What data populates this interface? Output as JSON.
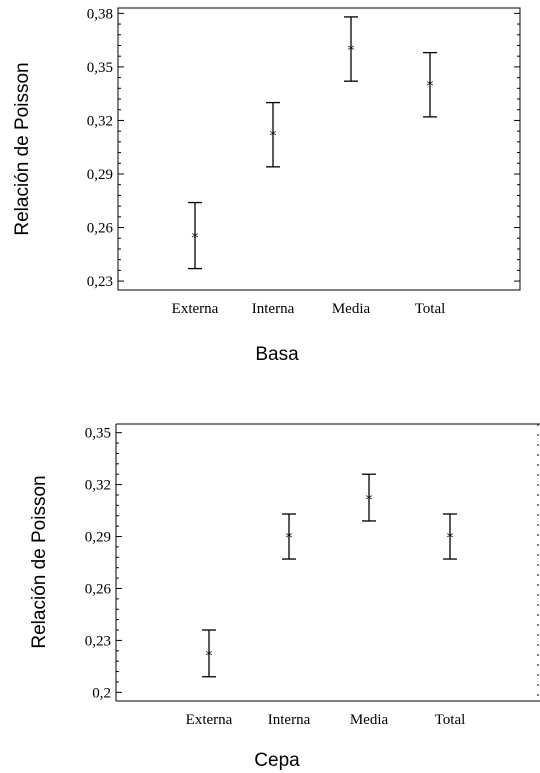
{
  "chart_data": [
    {
      "type": "scatter",
      "title": "",
      "xlabel": "Basa",
      "ylabel": "Relación de Poisson",
      "categories": [
        "Externa",
        "Interna",
        "Media",
        "Total"
      ],
      "series": [
        {
          "means": [
            0.255,
            0.312,
            0.36,
            0.34
          ],
          "lower": [
            0.237,
            0.294,
            0.342,
            0.322
          ],
          "upper": [
            0.274,
            0.33,
            0.378,
            0.358
          ]
        }
      ],
      "ylim": [
        0.225,
        0.383
      ],
      "yticks": [
        "0,23",
        "0,26",
        "0,29",
        "0,32",
        "0,35",
        "0,38"
      ],
      "ytick_values": [
        0.23,
        0.26,
        0.29,
        0.32,
        0.35,
        0.38
      ],
      "grid": false,
      "legend": "none"
    },
    {
      "type": "scatter",
      "title": "",
      "xlabel": "Cepa",
      "ylabel": "Relación de Poisson",
      "categories": [
        "Externa",
        "Interna",
        "Media",
        "Total"
      ],
      "series": [
        {
          "means": [
            0.222,
            0.29,
            0.312,
            0.29
          ],
          "lower": [
            0.209,
            0.277,
            0.299,
            0.277
          ],
          "upper": [
            0.236,
            0.303,
            0.326,
            0.303
          ]
        }
      ],
      "ylim": [
        0.195,
        0.355
      ],
      "yticks": [
        "0,2",
        "0,23",
        "0,26",
        "0,29",
        "0,32",
        "0,35"
      ],
      "ytick_values": [
        0.2,
        0.23,
        0.26,
        0.29,
        0.32,
        0.35
      ],
      "grid": false,
      "legend": "none"
    }
  ]
}
